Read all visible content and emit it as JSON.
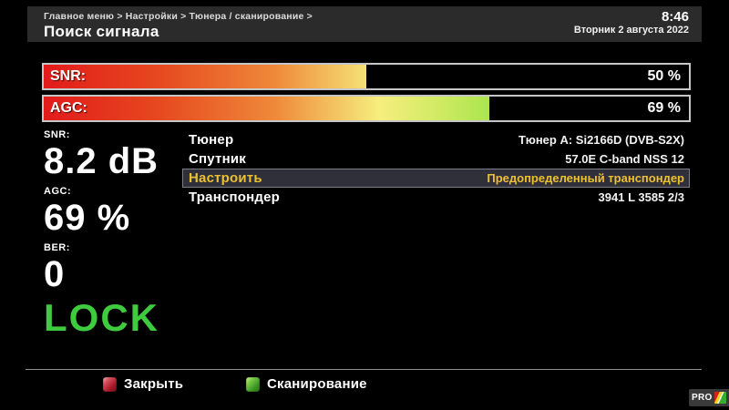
{
  "header": {
    "breadcrumb": "Главное меню > Настройки > Тюнера / сканирование >",
    "title": "Поиск сигнала",
    "time": "8:46",
    "date": "Вторник 2 августа 2022"
  },
  "bars": [
    {
      "label": "SNR:",
      "value_text": "50 %",
      "percent": 50
    },
    {
      "label": "AGC:",
      "value_text": "69 %",
      "percent": 69
    }
  ],
  "stats": [
    {
      "label": "SNR:",
      "value": "8.2 dB"
    },
    {
      "label": "AGC:",
      "value": "69 %"
    },
    {
      "label": "BER:",
      "value": "0"
    }
  ],
  "lock": {
    "text": "LOCK",
    "color": "#3ecb3e"
  },
  "settings": {
    "rows": [
      {
        "label": "Тюнер",
        "value": "Тюнер A: Si2166D (DVB-S2X)",
        "selected": false
      },
      {
        "label": "Спутник",
        "value": "57.0E C-band NSS 12",
        "selected": false
      },
      {
        "label": "Настроить",
        "value": "Предопределенный транспондер",
        "selected": true
      },
      {
        "label": "Транспондер",
        "value": "3941 L 3585 2/3",
        "selected": false
      }
    ]
  },
  "footer": {
    "close_button": {
      "icon": "red-key-icon",
      "label": "Закрыть"
    },
    "scan_button": {
      "icon": "green-key-icon",
      "label": "Сканирование"
    },
    "brand": "PRO"
  },
  "colors": {
    "accent_selected": "#ecc12f",
    "lock_green": "#3ecb3e",
    "bar_gradient_start": "#e21b1b",
    "bar_gradient_mid": "#f6ee7e",
    "bar_gradient_end": "#a6e44c",
    "header_bg": "#2b2b2b",
    "selected_row_bg": "#30303b"
  }
}
